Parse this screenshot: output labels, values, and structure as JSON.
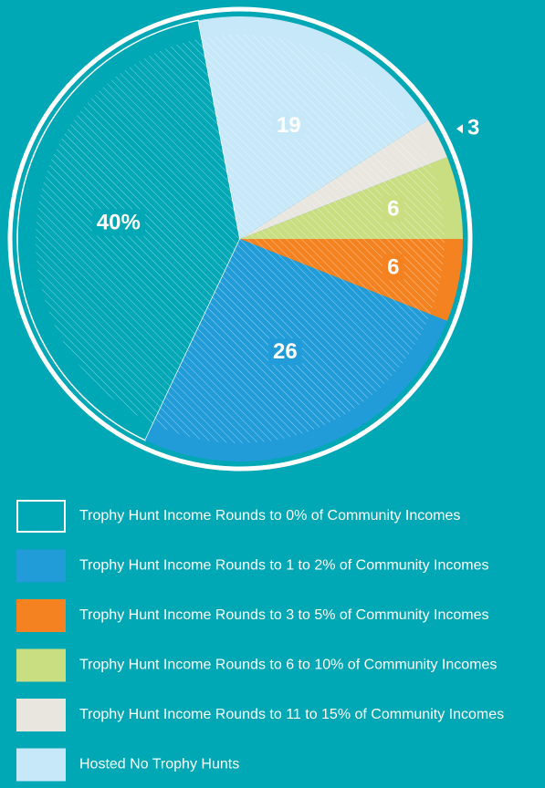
{
  "chart_data": {
    "type": "pie",
    "categories": [
      "Trophy Hunt Income Rounds to 0% of Community Incomes",
      "Trophy Hunt Income Rounds to 1 to 2% of Community Incomes",
      "Trophy Hunt Income Rounds to 3 to 5% of Community Incomes",
      "Trophy Hunt Income Rounds to 6 to 10% of Community Incomes",
      "Trophy Hunt Income Rounds to 11 to 15% of Community Incomes",
      "Hosted No Trophy Hunts"
    ],
    "values": [
      40,
      26,
      6,
      6,
      3,
      19
    ],
    "value_labels": [
      "40%",
      "26",
      "6",
      "6",
      "3",
      "19"
    ],
    "colors": [
      "#00a7b5",
      "#219cd8",
      "#f58220",
      "#c9dd81",
      "#e9e5df",
      "#c7e8f8"
    ],
    "start_angle": -10.8,
    "counterclockwise": true,
    "legend": "bottom"
  }
}
